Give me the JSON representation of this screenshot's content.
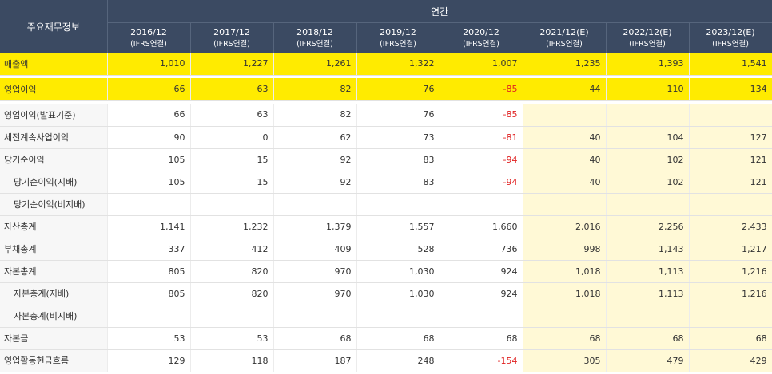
{
  "header": {
    "corner": "주요재무정보",
    "group": "연간",
    "columns": [
      {
        "year": "2016/12",
        "basis": "(IFRS연결)",
        "estimate": false
      },
      {
        "year": "2017/12",
        "basis": "(IFRS연결)",
        "estimate": false
      },
      {
        "year": "2018/12",
        "basis": "(IFRS연결)",
        "estimate": false
      },
      {
        "year": "2019/12",
        "basis": "(IFRS연결)",
        "estimate": false
      },
      {
        "year": "2020/12",
        "basis": "(IFRS연결)",
        "estimate": false
      },
      {
        "year": "2021/12(E)",
        "basis": "(IFRS연결)",
        "estimate": true
      },
      {
        "year": "2022/12(E)",
        "basis": "(IFRS연결)",
        "estimate": true
      },
      {
        "year": "2023/12(E)",
        "basis": "(IFRS연결)",
        "estimate": true
      }
    ]
  },
  "colors": {
    "highlight": "#ffeb00",
    "estimate_bg": "#fff9d6",
    "negative": "#e02020",
    "header_bg": "#3b4a62"
  },
  "rows": [
    {
      "label": "매출액",
      "indent": false,
      "highlight": true,
      "values": [
        "1,010",
        "1,227",
        "1,261",
        "1,322",
        "1,007",
        "1,235",
        "1,393",
        "1,541"
      ]
    },
    {
      "spacer": true
    },
    {
      "label": "영업이익",
      "indent": false,
      "highlight": true,
      "values": [
        "66",
        "63",
        "82",
        "76",
        "-85",
        "44",
        "110",
        "134"
      ]
    },
    {
      "spacer": true
    },
    {
      "label": "영업이익(발표기준)",
      "indent": false,
      "values": [
        "66",
        "63",
        "82",
        "76",
        "-85",
        "",
        "",
        ""
      ]
    },
    {
      "label": "세전계속사업이익",
      "indent": false,
      "values": [
        "90",
        "0",
        "62",
        "73",
        "-81",
        "40",
        "104",
        "127"
      ]
    },
    {
      "label": "당기순이익",
      "indent": false,
      "values": [
        "105",
        "15",
        "92",
        "83",
        "-94",
        "40",
        "102",
        "121"
      ]
    },
    {
      "label": "당기순이익(지배)",
      "indent": true,
      "values": [
        "105",
        "15",
        "92",
        "83",
        "-94",
        "40",
        "102",
        "121"
      ]
    },
    {
      "label": "당기순이익(비지배)",
      "indent": true,
      "values": [
        "",
        "",
        "",
        "",
        "",
        "",
        "",
        ""
      ]
    },
    {
      "label": "자산총계",
      "indent": false,
      "values": [
        "1,141",
        "1,232",
        "1,379",
        "1,557",
        "1,660",
        "2,016",
        "2,256",
        "2,433"
      ]
    },
    {
      "label": "부채총계",
      "indent": false,
      "values": [
        "337",
        "412",
        "409",
        "528",
        "736",
        "998",
        "1,143",
        "1,217"
      ]
    },
    {
      "label": "자본총계",
      "indent": false,
      "values": [
        "805",
        "820",
        "970",
        "1,030",
        "924",
        "1,018",
        "1,113",
        "1,216"
      ]
    },
    {
      "label": "자본총계(지배)",
      "indent": true,
      "values": [
        "805",
        "820",
        "970",
        "1,030",
        "924",
        "1,018",
        "1,113",
        "1,216"
      ]
    },
    {
      "label": "자본총계(비지배)",
      "indent": true,
      "values": [
        "",
        "",
        "",
        "",
        "",
        "",
        "",
        ""
      ]
    },
    {
      "label": "자본금",
      "indent": false,
      "values": [
        "53",
        "53",
        "68",
        "68",
        "68",
        "68",
        "68",
        "68"
      ]
    },
    {
      "label": "영업활동현금흐름",
      "indent": false,
      "values": [
        "129",
        "118",
        "187",
        "248",
        "-154",
        "305",
        "479",
        "429"
      ]
    }
  ]
}
